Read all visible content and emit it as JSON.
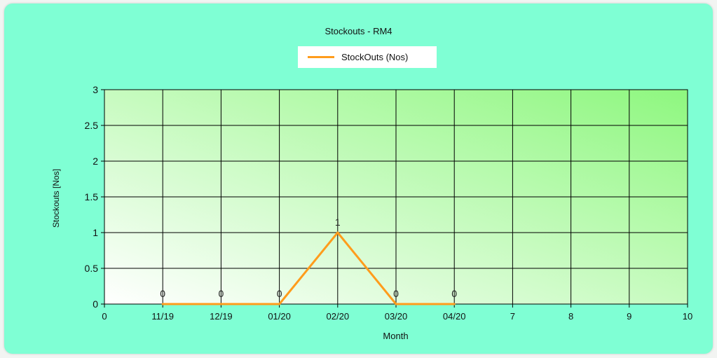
{
  "chart_data": {
    "type": "line",
    "title": "Stockouts - RM4",
    "xlabel": "Month",
    "ylabel": "Stockouts [Nos]",
    "xlim": [
      0,
      10
    ],
    "ylim": [
      0,
      3
    ],
    "x_ticks": [
      "0",
      "11/19",
      "12/19",
      "01/20",
      "02/20",
      "03/20",
      "04/20",
      "7",
      "8",
      "9",
      "10"
    ],
    "y_ticks": [
      "0",
      "0.5",
      "1",
      "1.5",
      "2",
      "2.5",
      "3"
    ],
    "grid": true,
    "legend_position": "top-center",
    "series": [
      {
        "name": "StockOuts (Nos)",
        "color": "#ff9c1c",
        "x": [
          "11/19",
          "12/19",
          "01/20",
          "02/20",
          "03/20",
          "04/20"
        ],
        "values": [
          0,
          0,
          0,
          1,
          0,
          0
        ],
        "data_labels": [
          "0",
          "0",
          "0",
          "1",
          "0",
          "0"
        ]
      }
    ]
  },
  "colors": {
    "panel_background": "#7fffd4",
    "plot_gradient_start": "#ffffff",
    "plot_gradient_end": "#8ef77f",
    "line": "#ff9c1c"
  }
}
